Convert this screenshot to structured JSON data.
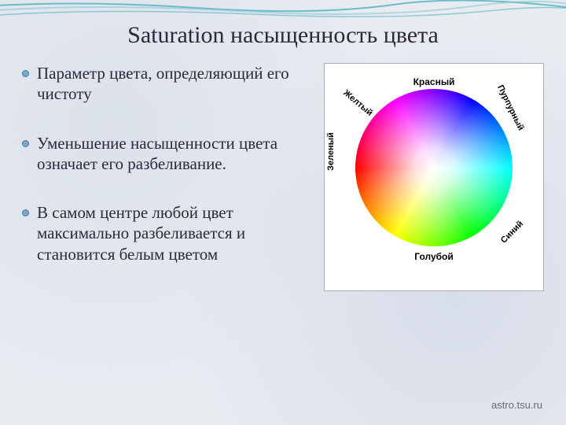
{
  "title": "Saturation насыщенность цвета",
  "bullets": [
    "Параметр  цвета, определяющий его чистоту",
    "Уменьшение насыщенности цвета означает его разбеливание.",
    "В самом центре любой цвет максимально разбеливается и становится белым цветом"
  ],
  "wheel_labels": {
    "top": "Красный",
    "top_left": "Желтый",
    "top_right": "Пурпурный",
    "left": "Зеленый",
    "bottom_right": "Синий",
    "bottom": "Голубой"
  },
  "footer": "astro.tsu.ru",
  "colors": {
    "bullet_fill": "#7aa8c8",
    "bullet_border": "#4a7a9a",
    "background": "#e8ebf0",
    "text": "#2a2a3a",
    "wave1": "#3aa8b8",
    "wave2": "#8ac8d0"
  },
  "wave": {
    "stroke_width": 2,
    "paths": [
      "M-20,8 Q100,0 250,10 T500,6 T760,14",
      "M-20,14 Q120,4 300,14 T600,8 T760,18",
      "M-20,20 Q140,10 320,18 T620,14 T760,22"
    ]
  }
}
